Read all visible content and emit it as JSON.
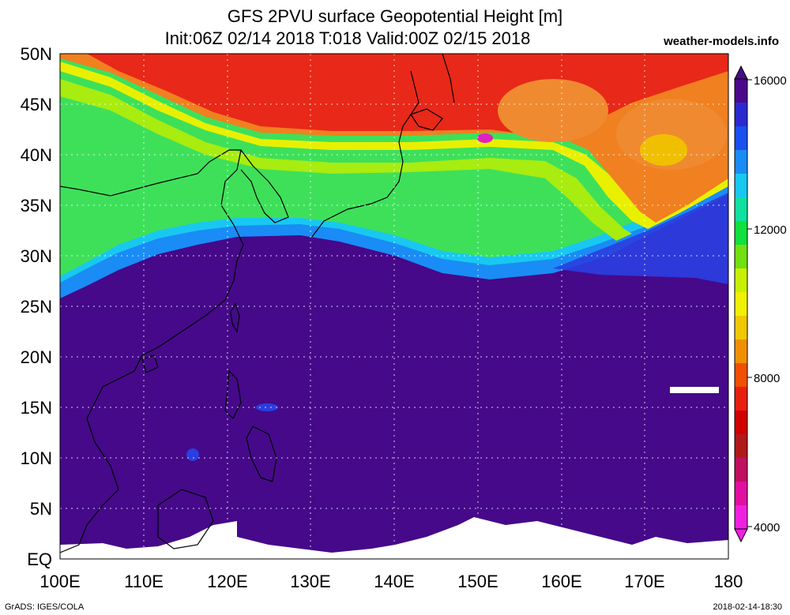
{
  "title_line1": "GFS 2PVU surface Geopotential Height [m]",
  "title_line2": "Init:06Z 02/14 2018 T:018 Valid:00Z 02/15 2018",
  "site": "weather-models.info",
  "footer_left": "GrADS: IGES/COLA",
  "footer_right": "2018-02-14-18:30",
  "lat_labels": [
    "50N",
    "45N",
    "40N",
    "35N",
    "30N",
    "25N",
    "20N",
    "15N",
    "10N",
    "5N",
    "EQ"
  ],
  "lon_labels": [
    "100E",
    "110E",
    "120E",
    "130E",
    "140E",
    "150E",
    "160E",
    "170E",
    "180"
  ],
  "colorbar": {
    "labels": [
      "16000",
      "12000",
      "8000",
      "4000"
    ],
    "colors": [
      "#4a0a8a",
      "#2a2ad0",
      "#1a4ff0",
      "#1a8cf5",
      "#18c8f0",
      "#10e0a0",
      "#10e040",
      "#70e010",
      "#c8f000",
      "#f0f000",
      "#f0c800",
      "#f09000",
      "#f05000",
      "#e82010",
      "#d00000",
      "#b01a1a",
      "#c01060",
      "#e010a0",
      "#f020e0"
    ]
  },
  "colors": {
    "low_purple": "#45098a",
    "blue": "#2a3fe0",
    "cyan": "#18c8f0",
    "green": "#20e040",
    "yellow": "#e8f000",
    "orange": "#f08020",
    "red": "#e82818",
    "magenta": "#e020c0"
  }
}
